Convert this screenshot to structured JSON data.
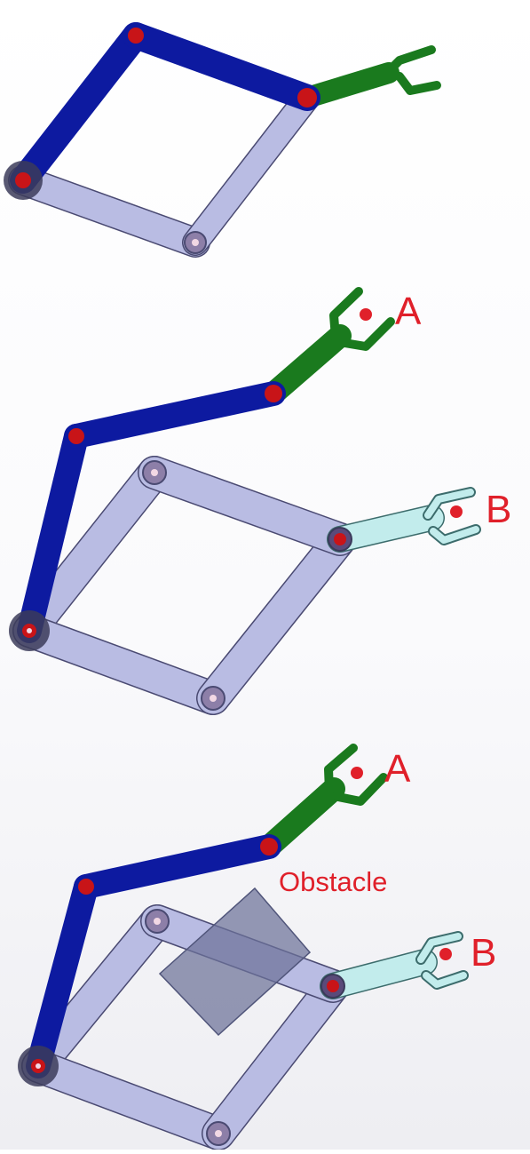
{
  "colors": {
    "dark_link": "#0d1aa0",
    "light_link": "#b9bce3",
    "link_outline": "#4a4a72",
    "green_gripper": "#1a7a1e",
    "cyan_gripper": "#c2ecec",
    "joint_red": "#c81418",
    "target_red": "#e0202a",
    "obstacle": "#6c7198"
  },
  "icons": {
    "gripper": "two-finger-gripper-icon",
    "joint": "pin-joint-icon",
    "target": "target-point-icon"
  },
  "panels": [
    {
      "target_labels": []
    },
    {
      "target_labels": [
        "A",
        "B"
      ]
    },
    {
      "target_labels": [
        "A",
        "B"
      ],
      "obstacle_label": "Obstacle"
    }
  ]
}
